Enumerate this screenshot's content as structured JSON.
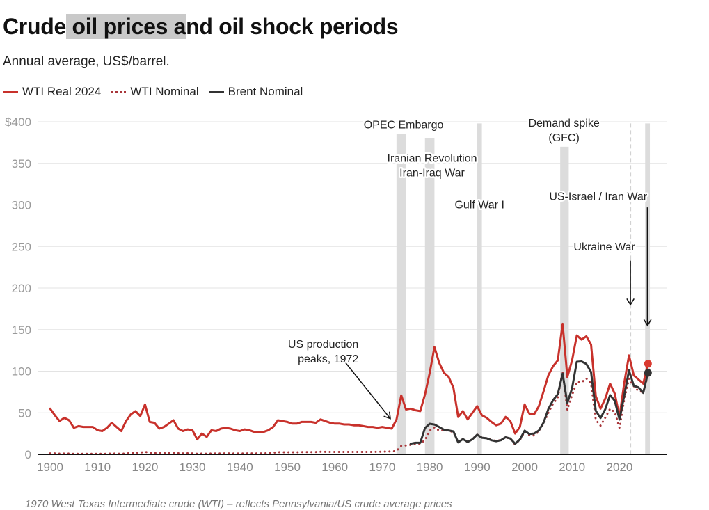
{
  "title": {
    "pre": "Crude",
    "highlight": " oil prices a",
    "post": "nd oil shock periods"
  },
  "subtitle": "Annual average, US$/barrel.",
  "footer": "1970 West Texas Intermediate crude (WTI) – reflects Pennsylvania/US crude average prices",
  "colors": {
    "wti_real": "#c8312b",
    "wti_nominal": "#a8363a",
    "brent": "#333333",
    "band": "#dcdcdc",
    "grid": "#e3e3e3",
    "axis_text": "#999999"
  },
  "chart_data": {
    "type": "line",
    "title": "Crude oil prices and oil shock periods",
    "subtitle": "Annual average, US$/barrel.",
    "xlabel": "",
    "ylabel": "",
    "xlim": [
      1897.5,
      2028
    ],
    "ylim": [
      0,
      400
    ],
    "yticks": [
      0,
      50,
      100,
      150,
      200,
      250,
      300,
      350,
      400
    ],
    "ytick_labels": [
      "0",
      "50",
      "100",
      "150",
      "200",
      "250",
      "300",
      "350",
      "$400"
    ],
    "xticks": [
      1900,
      1910,
      1920,
      1930,
      1940,
      1950,
      1960,
      1970,
      1980,
      1990,
      2000,
      2010,
      2020
    ],
    "grid": true,
    "legend_position": "top-left",
    "legend": [
      "WTI Real 2024",
      "WTI Nominal",
      "Brent Nominal"
    ],
    "series": [
      {
        "name": "WTI Real 2024",
        "style": "solid",
        "x_start": 1900,
        "values": [
          55,
          47,
          40,
          44,
          41,
          32,
          34,
          33,
          33,
          33,
          29,
          28,
          32,
          38,
          33,
          28,
          40,
          48,
          52,
          46,
          60,
          39,
          38,
          31,
          33,
          37,
          41,
          31,
          28,
          30,
          29,
          18,
          25,
          21,
          29,
          28,
          31,
          32,
          31,
          29,
          28,
          30,
          29,
          27,
          27,
          27,
          29,
          33,
          41,
          40,
          39,
          37,
          37,
          39,
          39,
          39,
          38,
          42,
          40,
          38,
          37,
          37,
          36,
          36,
          35,
          35,
          34,
          33,
          33,
          32,
          33,
          32,
          31,
          42,
          71,
          54,
          55,
          53,
          52,
          72,
          98,
          129,
          110,
          98,
          93,
          80,
          45,
          52,
          42,
          50,
          58,
          47,
          44,
          39,
          35,
          37,
          45,
          40,
          25,
          33,
          60,
          49,
          48,
          58,
          76,
          95,
          106,
          113,
          157,
          93,
          113,
          143,
          138,
          142,
          132,
          70,
          55,
          67,
          85,
          73,
          45,
          86,
          119,
          95,
          90,
          85,
          109
        ]
      },
      {
        "name": "WTI Nominal",
        "style": "dotted",
        "x_start": 1900,
        "values": [
          1.2,
          1.2,
          0.8,
          0.9,
          0.9,
          0.6,
          0.7,
          0.7,
          0.7,
          0.7,
          0.6,
          0.6,
          0.7,
          1.0,
          0.8,
          0.6,
          1.1,
          1.6,
          2.0,
          2.0,
          3.1,
          1.7,
          1.6,
          1.3,
          1.4,
          1.7,
          1.9,
          1.3,
          1.2,
          1.3,
          1.2,
          0.7,
          0.9,
          0.7,
          1.0,
          1.0,
          1.1,
          1.2,
          1.1,
          1.0,
          1.0,
          1.1,
          1.2,
          1.2,
          1.2,
          1.2,
          1.6,
          1.9,
          2.6,
          2.5,
          2.5,
          2.5,
          2.5,
          2.7,
          2.8,
          2.8,
          2.8,
          3.1,
          3.0,
          2.9,
          2.9,
          2.9,
          2.9,
          2.9,
          2.9,
          2.9,
          2.9,
          2.9,
          2.9,
          3.1,
          3.2,
          3.4,
          3.4,
          4.2,
          10.1,
          10.7,
          11.5,
          12.4,
          12.7,
          17.3,
          28.6,
          32.5,
          28.5,
          29.1,
          28.3,
          26.8,
          14.8,
          18.3,
          15.0,
          18.2,
          23.8,
          20.1,
          19.4,
          17.5,
          16.2,
          17.2,
          20.6,
          18.6,
          12.0,
          17.3,
          27.4,
          23.0,
          22.8,
          27.7,
          37.4,
          50.0,
          61.0,
          68.0,
          99.6,
          53.5,
          71.2,
          87.0,
          86.5,
          91.2,
          85.3,
          41.4,
          34.6,
          44.2,
          54.8,
          50.8,
          31.7,
          65.6,
          91.0,
          82.0,
          76.0,
          75.0,
          95.0
        ]
      },
      {
        "name": "Brent Nominal",
        "style": "solid",
        "x_start": 1976,
        "values": [
          12.8,
          13.9,
          13.9,
          31.6,
          36.8,
          35.9,
          32.9,
          29.6,
          28.8,
          27.6,
          14.4,
          18.4,
          14.9,
          18.2,
          23.7,
          20.0,
          19.3,
          17.0,
          15.8,
          17.0,
          20.6,
          19.1,
          12.7,
          17.9,
          28.5,
          24.4,
          25.0,
          28.8,
          38.3,
          54.5,
          65.1,
          72.4,
          97.0,
          61.7,
          79.5,
          111.3,
          111.7,
          108.7,
          98.9,
          52.4,
          43.7,
          54.2,
          71.3,
          64.3,
          41.8,
          70.9,
          100.9,
          82.5,
          80.5,
          74.0,
          98.0
        ]
      }
    ],
    "end_markers": [
      {
        "series": "WTI Real 2024",
        "x": 2026,
        "value": 109
      },
      {
        "series": "Brent Nominal",
        "x": 2026,
        "value": 98
      }
    ],
    "shock_bands": [
      {
        "label": "OPEC Embargo",
        "from": 1973,
        "to": 1975
      },
      {
        "label": "Iranian Revolution / Iran-Iraq War",
        "from": 1979,
        "to": 1981
      },
      {
        "label": "Gulf War I",
        "from": 1990,
        "to": 1991
      },
      {
        "label": "Demand spike (GFC)",
        "from": 2007.5,
        "to": 2009.3
      },
      {
        "label": "US-Israel / Iran War",
        "from": 2025.4,
        "to": 2026.4
      }
    ],
    "dashed_lines": [
      {
        "label": "Ukraine War",
        "x": 2022.3
      }
    ],
    "annotations": [
      {
        "id": "opec",
        "lines": [
          "OPEC Embargo"
        ],
        "x": 1974.5,
        "y": 392
      },
      {
        "id": "iran",
        "lines": [
          "Iranian Revolution",
          "Iran-Iraq War"
        ],
        "x": 1980.5,
        "y": 352
      },
      {
        "id": "gulf",
        "lines": [
          "Gulf War I"
        ],
        "x": 1990.5,
        "y": 296
      },
      {
        "id": "gfc",
        "lines": [
          "Demand spike",
          "(GFC)"
        ],
        "x": 2008.3,
        "y": 394
      },
      {
        "id": "usisrael",
        "lines": [
          "US-Israel / Iran War"
        ],
        "x": 2015.5,
        "y": 306
      },
      {
        "id": "ukraine",
        "lines": [
          "Ukraine War"
        ],
        "x": 2016.8,
        "y": 245
      },
      {
        "id": "usprod",
        "lines": [
          "US production",
          "peaks, 1972"
        ],
        "x": 1965,
        "y": 128,
        "anchor": "end"
      }
    ],
    "arrows": [
      {
        "id": "usprod-arrow",
        "from": [
          1962.3,
          110
        ],
        "to": [
          1971.7,
          43
        ]
      },
      {
        "id": "ukraine-arrow",
        "from": [
          2022.3,
          233
        ],
        "to": [
          2022.3,
          180
        ]
      },
      {
        "id": "usisrael-arrow",
        "from": [
          2025.9,
          297
        ],
        "to": [
          2025.9,
          155
        ]
      }
    ]
  }
}
